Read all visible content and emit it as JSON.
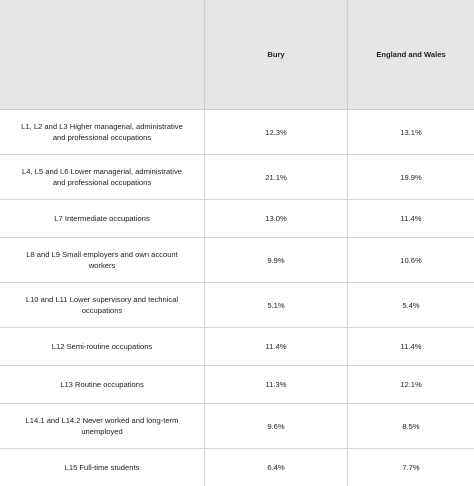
{
  "header": {
    "col0": "",
    "col1": "Bury",
    "col2": "England and Wales"
  },
  "rows": [
    {
      "label": "L1, L2 and L3 Higher managerial, administrative and professional occupations",
      "bury": "12.3%",
      "ew": "13.1%"
    },
    {
      "label": "L4, L5 and L6 Lower managerial, administrative and professional occupations",
      "bury": "21.1%",
      "ew": "19.9%"
    },
    {
      "label": "L7 Intermediate occupations",
      "bury": "13.0%",
      "ew": "11.4%"
    },
    {
      "label": "L8 and L9 Small employers and own account workers",
      "bury": "9.9%",
      "ew": "10.6%"
    },
    {
      "label": "L10 and L11 Lower supervisory and technical occupations",
      "bury": "5.1%",
      "ew": "5.4%"
    },
    {
      "label": "L12 Semi-routine occupations",
      "bury": "11.4%",
      "ew": "11.4%"
    },
    {
      "label": "L13 Routine occupations",
      "bury": "11.3%",
      "ew": "12.1%"
    },
    {
      "label": "L14.1 and L14.2 Never worked and long-term unemployed",
      "bury": "9.6%",
      "ew": "8.5%"
    },
    {
      "label": "L15 Full-time students",
      "bury": "6.4%",
      "ew": "7.7%"
    }
  ]
}
